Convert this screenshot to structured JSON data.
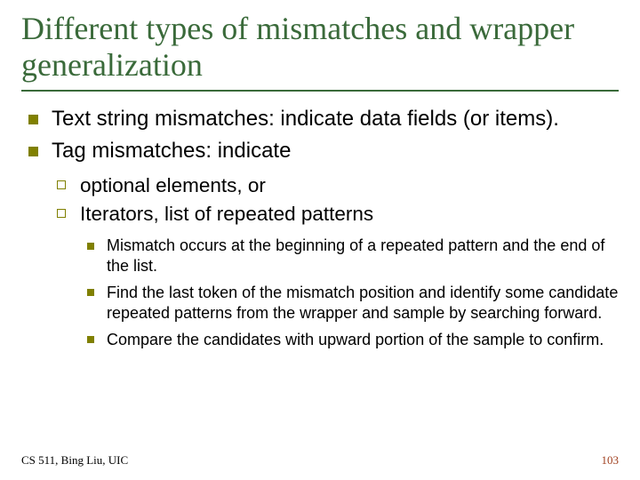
{
  "title": "Different types of mismatches and wrapper generalization",
  "colors": {
    "title": "#3a6a3a",
    "rule": "#3a6a3a",
    "bullet": "#808000",
    "page_number": "#a04020",
    "background": "#ffffff",
    "text": "#000000"
  },
  "body": {
    "l1": [
      "Text string mismatches: indicate data fields (or items).",
      "Tag mismatches: indicate"
    ],
    "l2": [
      "optional elements, or",
      "Iterators, list of repeated patterns"
    ],
    "l3": [
      "Mismatch occurs at the beginning of a repeated pattern and the end of the list.",
      "Find the last token of the mismatch position and identify some candidate repeated patterns from the wrapper and sample by searching forward.",
      "Compare the candidates with upward portion of the sample to confirm."
    ]
  },
  "footer": {
    "left": "CS 511, Bing Liu, UIC",
    "page": "103"
  },
  "fonts": {
    "title_family": "Times New Roman",
    "body_family": "Arial",
    "title_size_pt": 36,
    "l1_size_pt": 24,
    "l2_size_pt": 22.5,
    "l3_size_pt": 18,
    "footer_size_pt": 13
  }
}
